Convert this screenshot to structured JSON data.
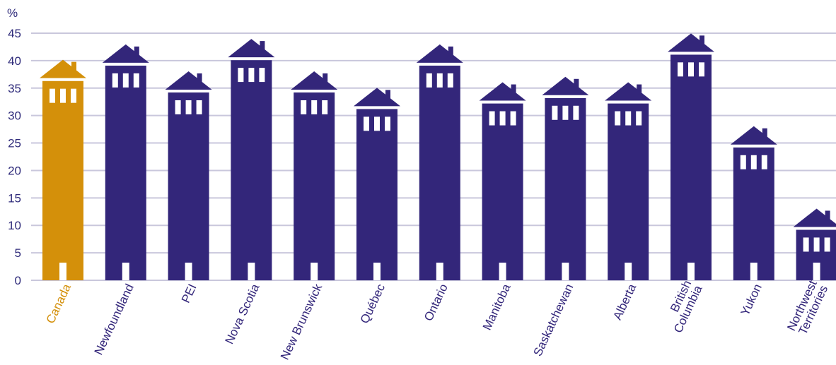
{
  "chart_data": {
    "type": "bar",
    "title": "",
    "xlabel": "",
    "ylabel": "%",
    "ylim": [
      0,
      45
    ],
    "yticks": [
      0,
      5,
      10,
      15,
      20,
      25,
      30,
      35,
      40,
      45
    ],
    "grid": true,
    "categories": [
      "Canada",
      "Newfoundland",
      "PEI",
      "Nova Scotia",
      "New Brunswick",
      "Québec",
      "Ontario",
      "Manitoba",
      "Saskatchewan",
      "Alberta",
      "British\nColumbia",
      "Yukon",
      "Northwest\nTerritories"
    ],
    "values": [
      36.3,
      39.1,
      34.2,
      40.1,
      34.2,
      31.2,
      39.1,
      32.2,
      33.2,
      32.2,
      41.1,
      24.2,
      9.2
    ],
    "highlight_index": 0,
    "colors": {
      "highlight": "#d4900a",
      "bar": "#33267a",
      "grid": "#c9c7dc",
      "text": "#2e2a7a"
    }
  }
}
